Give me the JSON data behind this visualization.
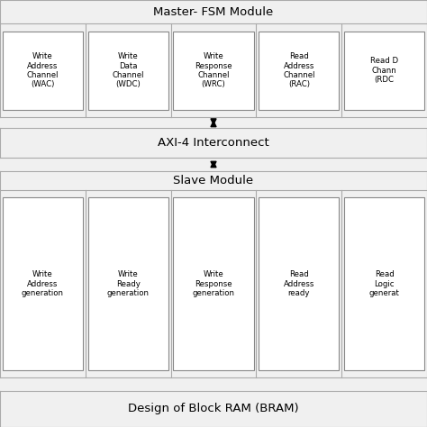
{
  "title_top": "Master- FSM Module",
  "title_bottom": "Slave Module",
  "title_bram": "Design of Block RAM (BRAM)",
  "interconnect_label": "AXI-4 Interconnect",
  "master_boxes": [
    "Write\nAddress\nChannel\n(WAC)",
    "Write\nData\nChannel\n(WDC)",
    "Write\nResponse\nChannel\n(WRC)",
    "Read\nAddress\nChannel\n(RAC)",
    "Read D\nChann\n(RDC"
  ],
  "slave_boxes": [
    "Write\nAddress\ngeneration",
    "Write\nReady\ngeneration",
    "Write\nResponse\ngeneration",
    "Read\nAddress\nready",
    "Read\nLogic\ngenerat"
  ],
  "bg_color": "#f0f0f0",
  "box_color": "#ffffff",
  "box_edge_color": "#888888",
  "text_color": "#000000",
  "line_color": "#000000",
  "section_line_color": "#aaaaaa",
  "fig_width": 4.74,
  "fig_height": 4.74,
  "dpi": 100
}
